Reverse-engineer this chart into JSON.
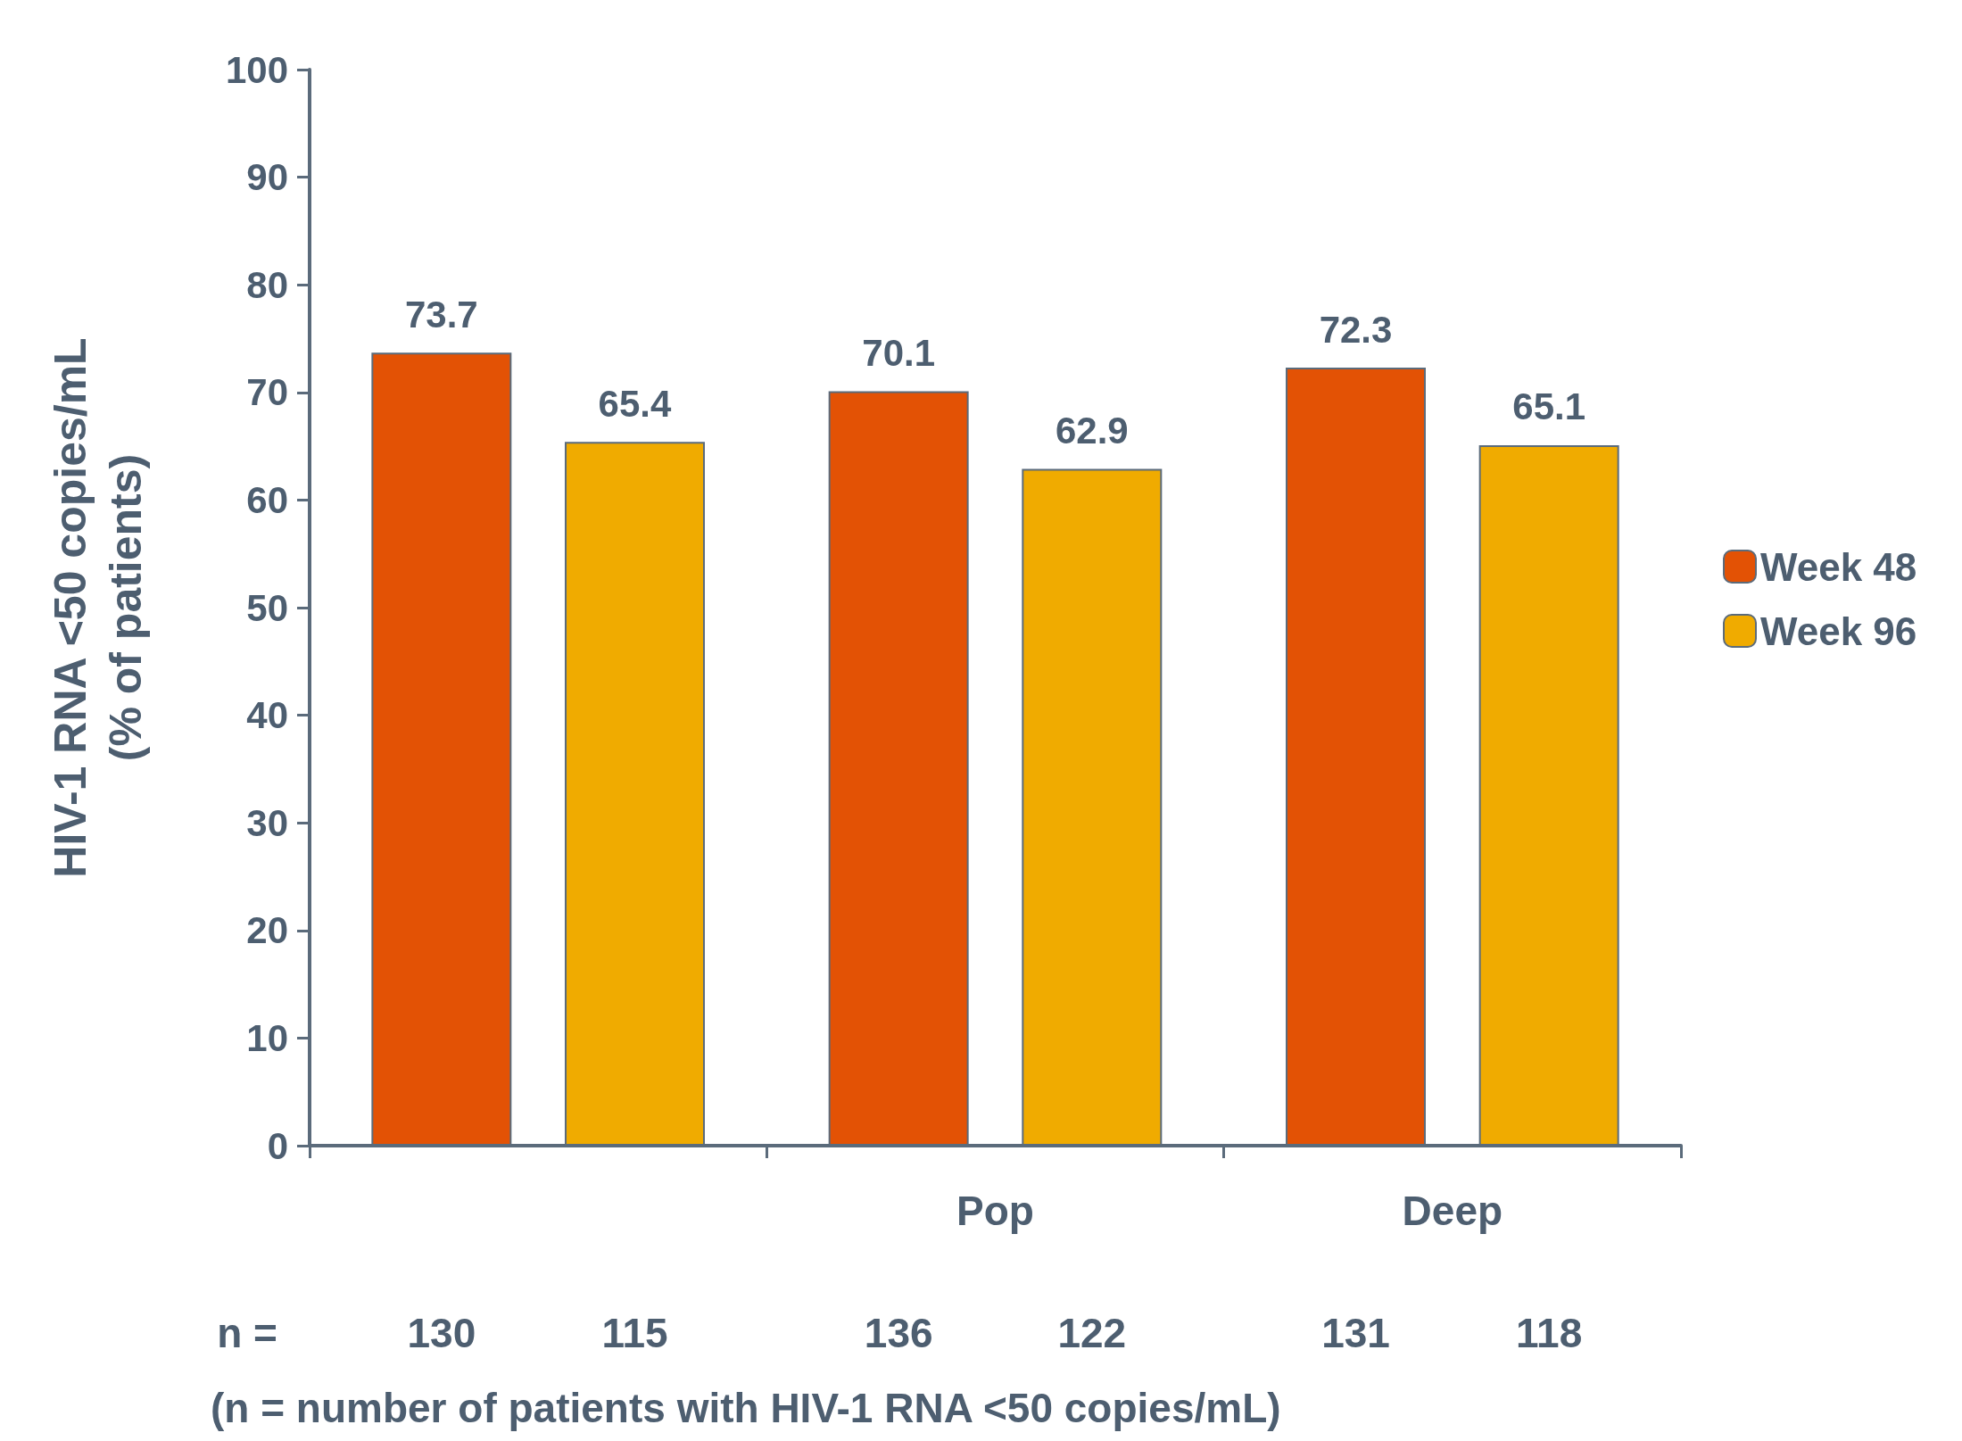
{
  "chart_data": {
    "type": "bar",
    "ylabel": "HIV-1 RNA <50 copies/mL\n(% of patients)",
    "categories": [
      null,
      "Pop",
      "Deep"
    ],
    "series": [
      {
        "name": "Week 48",
        "color": "#e35205",
        "values": [
          73.7,
          70.1,
          72.3
        ]
      },
      {
        "name": "Week 96",
        "color": "#f0ab00",
        "values": [
          65.4,
          62.9,
          65.1
        ]
      }
    ],
    "ylim": [
      0,
      100
    ],
    "yticks": [
      0,
      10,
      20,
      30,
      40,
      50,
      60,
      70,
      80,
      90,
      100
    ],
    "data_labels": true,
    "grid": false,
    "legend": "right",
    "annotations": [
      "n =",
      "130",
      "115",
      "136",
      "122",
      "131",
      "118",
      "(n = number of patients with HIV-1 RNA <50 copies/mL)"
    ]
  }
}
